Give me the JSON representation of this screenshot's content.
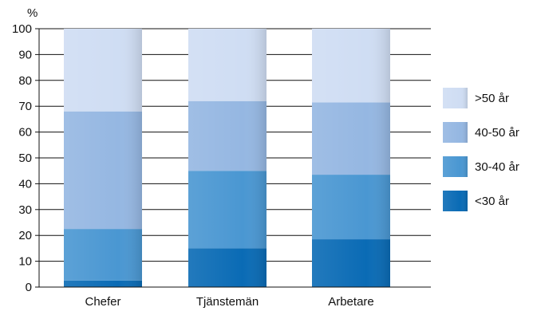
{
  "chart_data": {
    "type": "bar",
    "stacked": true,
    "y_unit_label": "%",
    "categories": [
      "Chefer",
      "Tjänstemän",
      "Arbetare"
    ],
    "series": [
      {
        "name": "<30 år",
        "color": "#0a6bb5",
        "values": [
          2.5,
          15,
          18.5
        ]
      },
      {
        "name": "30-40 år",
        "color": "#4a97d2",
        "values": [
          20,
          30,
          25
        ]
      },
      {
        "name": "40-50 år",
        "color": "#95b7e2",
        "values": [
          45.5,
          27,
          28
        ]
      },
      {
        "name": ">50 år",
        "color": "#cfddf3",
        "values": [
          32,
          28,
          28.5
        ]
      }
    ],
    "ylim": [
      0,
      100
    ],
    "yticks": [
      0,
      10,
      20,
      30,
      40,
      50,
      60,
      70,
      80,
      90,
      100
    ],
    "grid": true,
    "legend_order": [
      ">50 år",
      "40-50 år",
      "30-40 år",
      "<30 år"
    ],
    "legend_position": "right"
  }
}
